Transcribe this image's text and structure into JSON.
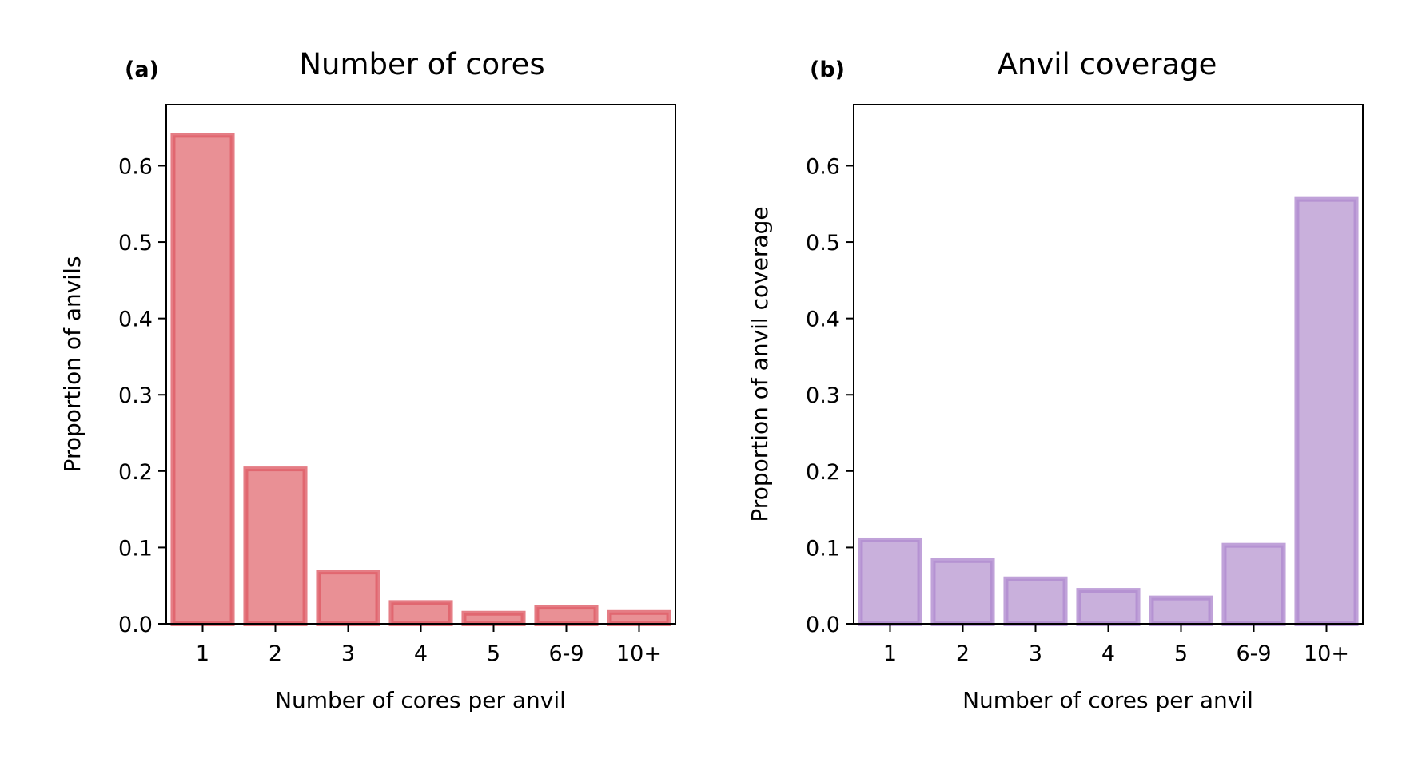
{
  "chart_data": [
    {
      "type": "bar",
      "panel_label": "(a)",
      "title": "Number of cores",
      "xlabel": "Number of cores per anvil",
      "ylabel": "Proportion of anvils",
      "categories": [
        "1",
        "2",
        "3",
        "4",
        "5",
        "6-9",
        "10+"
      ],
      "values": [
        0.643,
        0.206,
        0.071,
        0.031,
        0.017,
        0.025,
        0.018
      ],
      "ylim": [
        0,
        0.68
      ],
      "yticks": [
        "0.0",
        "0.1",
        "0.2",
        "0.3",
        "0.4",
        "0.5",
        "0.6"
      ],
      "grid": false,
      "colors": {
        "fill": "#e99095",
        "edge": "#df5d66"
      }
    },
    {
      "type": "bar",
      "panel_label": "(b)",
      "title": "Anvil coverage",
      "xlabel": "Number of cores per anvil",
      "ylabel": "Proportion of anvil coverage",
      "categories": [
        "1",
        "2",
        "3",
        "4",
        "5",
        "6-9",
        "10+"
      ],
      "values": [
        0.113,
        0.086,
        0.062,
        0.047,
        0.037,
        0.106,
        0.559
      ],
      "ylim": [
        0,
        0.68
      ],
      "yticks": [
        "0.0",
        "0.1",
        "0.2",
        "0.3",
        "0.4",
        "0.5",
        "0.6"
      ],
      "grid": false,
      "colors": {
        "fill": "#c9b0dc",
        "edge": "#b08bd0"
      }
    }
  ]
}
